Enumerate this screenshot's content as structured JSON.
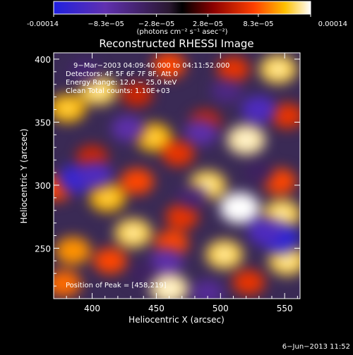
{
  "colorbar": {
    "tick_labels": [
      "-0.00014",
      "−8.3e−05",
      "−2.8e−05",
      "2.8e−05",
      "8.3e−05",
      "0.00014"
    ],
    "tick_values": [
      -0.00014,
      -8.3e-05,
      -2.8e-05,
      2.8e-05,
      8.3e-05,
      0.00014
    ],
    "range": [
      -0.00014,
      0.00014
    ],
    "units_label": "(photons cm⁻² s⁻¹ asec⁻²)"
  },
  "chart_data": {
    "type": "heatmap",
    "title": "Reconstructed RHESSI Image",
    "xlabel": "Heliocentric X (arcsec)",
    "ylabel": "Heliocentric Y (arcsec)",
    "xlim": [
      370,
      562
    ],
    "ylim": [
      210,
      405
    ],
    "xticks": [
      400,
      450,
      500,
      550
    ],
    "yticks": [
      250,
      300,
      350,
      400
    ],
    "annotations": [
      "9−Mar−2003 04:09:40.000 to 04:11:52.000",
      "Detectors: 4F 5F 6F 7F 8F, Att 0",
      "Energy Range: 12.0 − 25.0 keV",
      "Clean     Total counts: 1.10E+03"
    ],
    "peak_label": "Position of Peak = [458,219]",
    "blobs": [
      {
        "x": 381,
        "y": 361,
        "v": 0.00011
      },
      {
        "x": 405,
        "y": 375,
        "v": 0.00012
      },
      {
        "x": 435,
        "y": 372,
        "v": 6e-05
      },
      {
        "x": 460,
        "y": 395,
        "v": 8e-05
      },
      {
        "x": 510,
        "y": 392,
        "v": 7e-05
      },
      {
        "x": 545,
        "y": 392,
        "v": 0.00012
      },
      {
        "x": 448,
        "y": 338,
        "v": 0.00011
      },
      {
        "x": 467,
        "y": 325,
        "v": 7e-05
      },
      {
        "x": 488,
        "y": 350,
        "v": 6e-05
      },
      {
        "x": 520,
        "y": 336,
        "v": 0.00013
      },
      {
        "x": 552,
        "y": 355,
        "v": 7e-05
      },
      {
        "x": 400,
        "y": 322,
        "v": 6e-05
      },
      {
        "x": 372,
        "y": 298,
        "v": 8e-05
      },
      {
        "x": 412,
        "y": 290,
        "v": 0.00011
      },
      {
        "x": 435,
        "y": 303,
        "v": 8e-05
      },
      {
        "x": 490,
        "y": 300,
        "v": 0.00012
      },
      {
        "x": 515,
        "y": 282,
        "v": 0.00014
      },
      {
        "x": 546,
        "y": 303,
        "v": 8e-05
      },
      {
        "x": 548,
        "y": 277,
        "v": 0.00012
      },
      {
        "x": 470,
        "y": 275,
        "v": 7e-05
      },
      {
        "x": 432,
        "y": 262,
        "v": 0.00012
      },
      {
        "x": 385,
        "y": 248,
        "v": 0.0001
      },
      {
        "x": 414,
        "y": 240,
        "v": 8e-05
      },
      {
        "x": 462,
        "y": 254,
        "v": 8e-05
      },
      {
        "x": 503,
        "y": 245,
        "v": 0.00012
      },
      {
        "x": 522,
        "y": 223,
        "v": 7e-05
      },
      {
        "x": 552,
        "y": 240,
        "v": 0.00012
      },
      {
        "x": 378,
        "y": 222,
        "v": 9e-05
      },
      {
        "x": 460,
        "y": 218,
        "v": 0.00013
      },
      {
        "x": 388,
        "y": 305,
        "v": -0.00012
      },
      {
        "x": 402,
        "y": 308,
        "v": -0.0001
      },
      {
        "x": 428,
        "y": 345,
        "v": -8e-05
      },
      {
        "x": 505,
        "y": 375,
        "v": -6e-05
      },
      {
        "x": 485,
        "y": 342,
        "v": -8e-05
      },
      {
        "x": 530,
        "y": 360,
        "v": -0.0001
      },
      {
        "x": 546,
        "y": 258,
        "v": -0.00013
      },
      {
        "x": 535,
        "y": 263,
        "v": -0.0001
      },
      {
        "x": 458,
        "y": 240,
        "v": -8e-05
      },
      {
        "x": 490,
        "y": 215,
        "v": -7e-05
      },
      {
        "x": 478,
        "y": 290,
        "v": -5e-05
      },
      {
        "x": 395,
        "y": 390,
        "v": -5e-05
      },
      {
        "x": 440,
        "y": 230,
        "v": -4e-05
      },
      {
        "x": 530,
        "y": 310,
        "v": -4e-05
      }
    ]
  },
  "timestamp": "6−Jun−2013 11:52"
}
